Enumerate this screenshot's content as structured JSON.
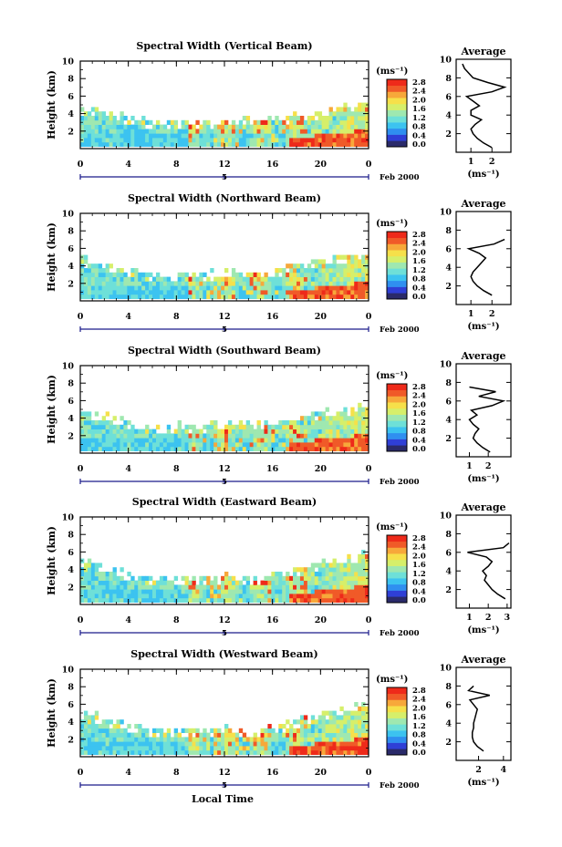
{
  "figure": {
    "xlabel": "Local Time",
    "date_label": "Feb 2000",
    "date_tick": "5",
    "avg_title": "Average",
    "ylabel": "Height (km)",
    "unit_label": "(ms⁻¹)",
    "avg_unit_label": "(ms⁻¹)"
  },
  "colors": {
    "colormap": [
      "#2a2a6a",
      "#2f3fd6",
      "#2f8ff0",
      "#3cc3f0",
      "#6ee0d8",
      "#9fe8b0",
      "#d6ef6a",
      "#f6e04a",
      "#f7a83a",
      "#f05a28",
      "#ee2a1a"
    ],
    "background": "#ffffff",
    "axis": "#000000"
  },
  "chart_data": [
    {
      "type": "heatmap",
      "title": "Spectral Width (Vertical Beam)",
      "x": {
        "label": "Local Time",
        "range": [
          0,
          24
        ],
        "ticks": [
          "0",
          "4",
          "8",
          "12",
          "16",
          "20",
          "0"
        ]
      },
      "y": {
        "label": "Height (km)",
        "range": [
          0,
          10
        ],
        "ticks": [
          "2",
          "4",
          "6",
          "8",
          "10"
        ]
      },
      "colorbar": {
        "range": [
          0,
          2.8
        ],
        "ticks": [
          "0.0",
          "0.4",
          "0.8",
          "1.2",
          "1.6",
          "2.0",
          "2.4",
          "2.8"
        ]
      },
      "valid_top_km": [
        4.8,
        4.6,
        4.3,
        4.0,
        3.7,
        3.4,
        3.2,
        3.1,
        3.2,
        3.2,
        3.1,
        3.2,
        3.3,
        3.4,
        3.4,
        3.4,
        3.5,
        3.7,
        3.9,
        4.1,
        4.4,
        4.8,
        5.0,
        5.2,
        5.3
      ],
      "profile": {
        "title": "Average",
        "xlabel": "(ms⁻¹)",
        "xrange": [
          0.3,
          2.9
        ],
        "xticks": [
          "1",
          "2"
        ],
        "yrange": [
          0,
          10
        ],
        "yticks": [
          "2",
          "4",
          "6",
          "8",
          "10"
        ],
        "heights": [
          0.5,
          1.0,
          1.5,
          2.0,
          2.5,
          3.0,
          3.5,
          4.0,
          4.5,
          5.0,
          5.5,
          6.0,
          6.5,
          7.0,
          7.5,
          8.0,
          8.5,
          9.0,
          9.5
        ],
        "values": [
          2.0,
          1.6,
          1.3,
          1.1,
          1.0,
          1.2,
          1.5,
          1.0,
          1.0,
          1.4,
          1.1,
          0.8,
          2.0,
          2.6,
          1.8,
          1.1,
          0.9,
          0.7,
          0.6
        ]
      }
    },
    {
      "type": "heatmap",
      "title": "Spectral Width (Northward Beam)",
      "x": {
        "label": "Local Time",
        "range": [
          0,
          24
        ],
        "ticks": [
          "0",
          "4",
          "8",
          "12",
          "16",
          "20",
          "0"
        ]
      },
      "y": {
        "label": "Height (km)",
        "range": [
          0,
          10
        ],
        "ticks": [
          "2",
          "4",
          "6",
          "8",
          "10"
        ]
      },
      "colorbar": {
        "range": [
          0,
          2.8
        ],
        "ticks": [
          "0.0",
          "0.4",
          "0.8",
          "1.2",
          "1.6",
          "2.0",
          "2.4",
          "2.8"
        ]
      },
      "valid_top_km": [
        4.9,
        4.6,
        4.3,
        4.0,
        3.6,
        3.4,
        3.2,
        3.1,
        3.2,
        3.3,
        3.2,
        3.3,
        3.4,
        3.4,
        3.3,
        3.4,
        3.6,
        3.9,
        4.2,
        4.5,
        4.8,
        5.0,
        5.2,
        5.4,
        5.6
      ],
      "profile": {
        "title": "Average",
        "xlabel": "(ms⁻¹)",
        "xrange": [
          0.3,
          2.9
        ],
        "xticks": [
          "1",
          "2"
        ],
        "yrange": [
          0,
          10
        ],
        "yticks": [
          "2",
          "4",
          "6",
          "8",
          "10"
        ],
        "heights": [
          1.0,
          1.5,
          2.0,
          2.5,
          3.0,
          3.5,
          4.0,
          4.5,
          5.0,
          5.5,
          6.0,
          6.5,
          7.0
        ],
        "values": [
          2.0,
          1.6,
          1.3,
          1.1,
          1.0,
          1.1,
          1.3,
          1.5,
          1.7,
          1.4,
          0.9,
          2.1,
          2.6
        ]
      }
    },
    {
      "type": "heatmap",
      "title": "Spectral Width (Southward Beam)",
      "x": {
        "label": "Local Time",
        "range": [
          0,
          24
        ],
        "ticks": [
          "0",
          "4",
          "8",
          "12",
          "16",
          "20",
          "0"
        ]
      },
      "y": {
        "label": "Height (km)",
        "range": [
          0,
          10
        ],
        "ticks": [
          "2",
          "4",
          "6",
          "8",
          "10"
        ]
      },
      "colorbar": {
        "range": [
          0,
          2.8
        ],
        "ticks": [
          "0.0",
          "0.4",
          "0.8",
          "1.2",
          "1.6",
          "2.0",
          "2.4",
          "2.8"
        ]
      },
      "valid_top_km": [
        5.0,
        4.8,
        4.5,
        4.2,
        3.8,
        3.5,
        3.3,
        3.2,
        3.3,
        3.3,
        3.2,
        3.3,
        3.4,
        3.5,
        3.5,
        3.5,
        3.6,
        3.8,
        4.1,
        4.4,
        4.7,
        5.0,
        5.2,
        5.4,
        5.5
      ],
      "profile": {
        "title": "Average",
        "xlabel": "(ms⁻¹)",
        "xrange": [
          0.3,
          3.2
        ],
        "xticks": [
          "1",
          "2"
        ],
        "yrange": [
          0,
          10
        ],
        "yticks": [
          "2",
          "4",
          "6",
          "8",
          "10"
        ],
        "heights": [
          0.5,
          1.0,
          1.5,
          2.0,
          2.5,
          3.0,
          3.5,
          4.0,
          4.5,
          5.0,
          5.5,
          6.0,
          6.5,
          7.0,
          7.5
        ],
        "values": [
          2.1,
          1.7,
          1.4,
          1.2,
          1.3,
          1.5,
          1.2,
          1.0,
          1.4,
          1.1,
          2.2,
          2.8,
          1.5,
          2.4,
          1.0
        ]
      }
    },
    {
      "type": "heatmap",
      "title": "Spectral Width (Eastward Beam)",
      "x": {
        "label": "Local Time",
        "range": [
          0,
          24
        ],
        "ticks": [
          "0",
          "4",
          "8",
          "12",
          "16",
          "20",
          "0"
        ]
      },
      "y": {
        "label": "Height (km)",
        "range": [
          0,
          10
        ],
        "ticks": [
          "2",
          "4",
          "6",
          "8",
          "10"
        ]
      },
      "colorbar": {
        "range": [
          0,
          2.8
        ],
        "ticks": [
          "0.0",
          "0.4",
          "0.8",
          "1.2",
          "1.6",
          "2.0",
          "2.4",
          "2.8"
        ]
      },
      "valid_top_km": [
        5.0,
        4.8,
        4.4,
        4.0,
        3.6,
        3.3,
        3.1,
        3.0,
        3.1,
        3.2,
        3.1,
        3.2,
        3.3,
        3.3,
        3.2,
        3.3,
        3.5,
        3.8,
        4.1,
        4.5,
        4.9,
        5.3,
        5.6,
        5.8,
        6.0
      ],
      "profile": {
        "title": "Average",
        "xlabel": "(ms⁻¹)",
        "xrange": [
          0.3,
          3.2
        ],
        "xticks": [
          "1",
          "2",
          "3"
        ],
        "yrange": [
          0,
          10
        ],
        "yticks": [
          "2",
          "4",
          "6",
          "8",
          "10"
        ],
        "heights": [
          1.0,
          1.5,
          2.0,
          2.5,
          3.0,
          3.5,
          4.0,
          4.5,
          5.0,
          5.5,
          6.0,
          6.5,
          7.0
        ],
        "values": [
          2.9,
          2.5,
          2.2,
          2.0,
          1.8,
          1.9,
          1.7,
          2.0,
          2.2,
          1.9,
          0.9,
          2.8,
          3.1
        ]
      }
    },
    {
      "type": "heatmap",
      "title": "Spectral Width (Westward Beam)",
      "x": {
        "label": "Local Time",
        "range": [
          0,
          24
        ],
        "ticks": [
          "0",
          "4",
          "8",
          "12",
          "16",
          "20",
          "0"
        ]
      },
      "y": {
        "label": "Height (km)",
        "range": [
          0,
          10
        ],
        "ticks": [
          "2",
          "4",
          "6",
          "8",
          "10"
        ]
      },
      "colorbar": {
        "range": [
          0,
          2.8
        ],
        "ticks": [
          "0.0",
          "0.4",
          "0.8",
          "1.2",
          "1.6",
          "2.0",
          "2.4",
          "2.8"
        ]
      },
      "valid_top_km": [
        5.1,
        4.9,
        4.5,
        4.1,
        3.7,
        3.4,
        3.2,
        3.1,
        3.2,
        3.3,
        3.2,
        3.3,
        3.4,
        3.3,
        3.2,
        3.3,
        3.5,
        3.8,
        4.2,
        4.6,
        5.0,
        5.4,
        5.7,
        5.9,
        6.1
      ],
      "profile": {
        "title": "Average",
        "xlabel": "(ms⁻¹)",
        "xrange": [
          0.2,
          4.6
        ],
        "xticks": [
          "2",
          "4"
        ],
        "yrange": [
          0,
          10
        ],
        "yticks": [
          "2",
          "4",
          "6",
          "8",
          "10"
        ],
        "heights": [
          1.0,
          1.5,
          2.0,
          2.5,
          3.0,
          3.5,
          4.0,
          4.5,
          5.0,
          5.5,
          6.0,
          6.5,
          7.0,
          7.5,
          8.0
        ],
        "values": [
          2.4,
          1.9,
          1.6,
          1.5,
          1.5,
          1.6,
          1.6,
          1.7,
          1.8,
          1.9,
          1.6,
          1.3,
          2.9,
          1.2,
          1.6
        ]
      }
    }
  ]
}
